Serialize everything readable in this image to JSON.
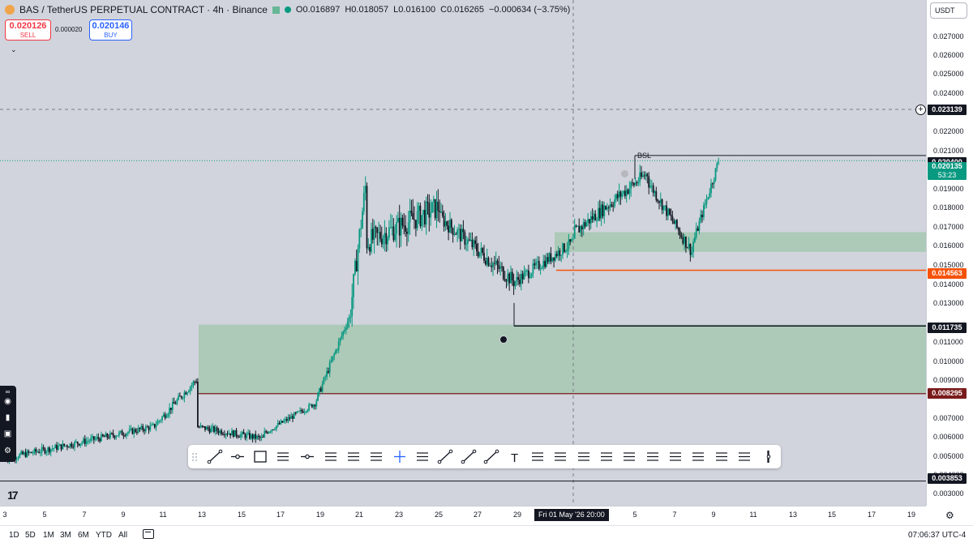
{
  "legend": {
    "title": "BAS / TetherUS PERPETUAL CONTRACT · 4h · Binance",
    "open": "O0.016897",
    "high": "H0.018057",
    "low": "L0.016100",
    "close": "C0.016265",
    "change": "−0.000634 (−3.75%)"
  },
  "trade": {
    "sell_price": "0.020126",
    "sell_label": "SELL",
    "spread": "0.000020",
    "buy_price": "0.020146",
    "buy_label": "BUY"
  },
  "currency": "USDT",
  "price_scale": [
    "0.027000",
    "0.026000",
    "0.025000",
    "0.024000",
    "0.022000",
    "0.021000",
    "0.019000",
    "0.018000",
    "0.017000",
    "0.016000",
    "0.015000",
    "0.014000",
    "0.013000",
    "0.011000",
    "0.010000",
    "0.009000",
    "0.007000",
    "0.006000",
    "0.005000",
    "0.004000",
    "0.003000"
  ],
  "price_tags": {
    "crosshair": "0.023139",
    "bsl_level": "0.020400",
    "last_price": "0.020135",
    "countdown": "53:23",
    "orange_level": "0.014563",
    "black_level": "0.011735",
    "maroon_level": "0.008295",
    "bottom_level": "0.003853"
  },
  "annotations": {
    "bsl": "BSL"
  },
  "time_scale": [
    "3",
    "5",
    "7",
    "9",
    "11",
    "13",
    "15",
    "17",
    "19",
    "21",
    "23",
    "25",
    "27",
    "29",
    "5",
    "7",
    "9",
    "11",
    "13",
    "15",
    "17",
    "19"
  ],
  "time_cursor": "Fri 01 May '26   20:00",
  "ranges": [
    "1D",
    "5D",
    "1M",
    "3M",
    "6M",
    "YTD",
    "All"
  ],
  "clock": "07:06:37 UTC-4",
  "colors": {
    "up": "#089981",
    "down": "#131722",
    "zone": "#8fbf9a",
    "orange": "#f5520a",
    "maroon": "#7a1b1b",
    "last": "#089981"
  },
  "icons": [
    "camera-icon",
    "video-icon",
    "layers-icon",
    "gear-icon",
    "calendar-icon",
    "settings-icon",
    "tradingview-logo"
  ],
  "chart_data": {
    "type": "candlestick",
    "title": "BAS / TetherUS PERPETUAL CONTRACT · 4h · Binance",
    "ylim": [
      0.0026,
      0.0283
    ],
    "zones": [
      {
        "from": 0.008295,
        "to": 0.0118
      },
      {
        "from": 0.0155,
        "to": 0.0165
      }
    ],
    "levels": [
      0.0204,
      0.014563,
      0.011735,
      0.008295,
      0.003853
    ],
    "segments": [
      {
        "bars": 100,
        "start": 0.005,
        "end": 0.0066,
        "noise": 0.00035
      },
      {
        "bars": 30,
        "start": 0.0066,
        "end": 0.009,
        "noise": 0.0004
      },
      {
        "bars": 45,
        "start": 0.0066,
        "end": 0.006,
        "noise": 0.00035
      },
      {
        "bars": 35,
        "start": 0.0063,
        "end": 0.0078,
        "noise": 0.0003
      },
      {
        "bars": 22,
        "start": 0.008,
        "end": 0.012,
        "noise": 0.0004
      },
      {
        "bars": 12,
        "start": 0.012,
        "end": 0.0188,
        "noise": 0.0012
      },
      {
        "bars": 50,
        "start": 0.016,
        "end": 0.0178,
        "noise": 0.0012
      },
      {
        "bars": 50,
        "start": 0.0172,
        "end": 0.014,
        "noise": 0.0008
      },
      {
        "bars": 40,
        "start": 0.014,
        "end": 0.016,
        "noise": 0.0006
      },
      {
        "bars": 50,
        "start": 0.0165,
        "end": 0.0195,
        "noise": 0.0007
      },
      {
        "bars": 30,
        "start": 0.019,
        "end": 0.0155,
        "noise": 0.0006
      },
      {
        "bars": 18,
        "start": 0.016,
        "end": 0.0201,
        "noise": 0.0005
      }
    ]
  }
}
